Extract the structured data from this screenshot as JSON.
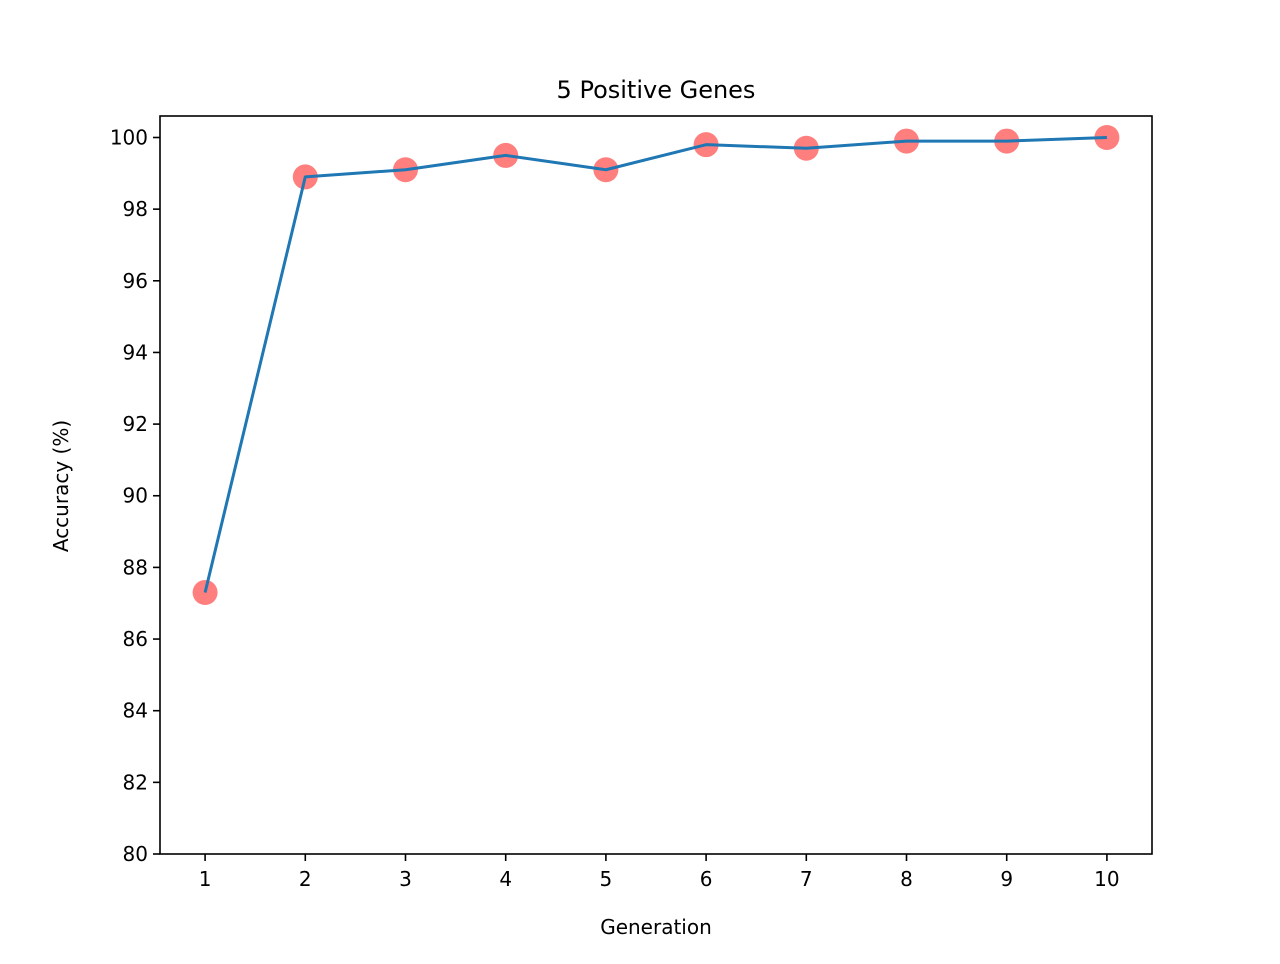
{
  "chart_data": {
    "type": "line",
    "title": "5 Positive Genes",
    "xlabel": "Generation",
    "ylabel": "Accuracy (%)",
    "x": [
      1,
      2,
      3,
      4,
      5,
      6,
      7,
      8,
      9,
      10
    ],
    "series": [
      {
        "values": [
          87.3,
          98.9,
          99.1,
          99.5,
          99.1,
          99.8,
          99.7,
          99.9,
          99.9,
          100.0
        ],
        "line_color": "#1f77b4",
        "marker_color": "#ff7f7f"
      }
    ],
    "xlim": [
      0.55,
      10.45
    ],
    "ylim": [
      80,
      100.6
    ],
    "xticks": [
      "1",
      "2",
      "3",
      "4",
      "5",
      "6",
      "7",
      "8",
      "9",
      "10"
    ],
    "yticks": [
      "80",
      "82",
      "84",
      "86",
      "88",
      "90",
      "92",
      "94",
      "96",
      "98",
      "100"
    ],
    "grid": false,
    "legend": "none"
  }
}
